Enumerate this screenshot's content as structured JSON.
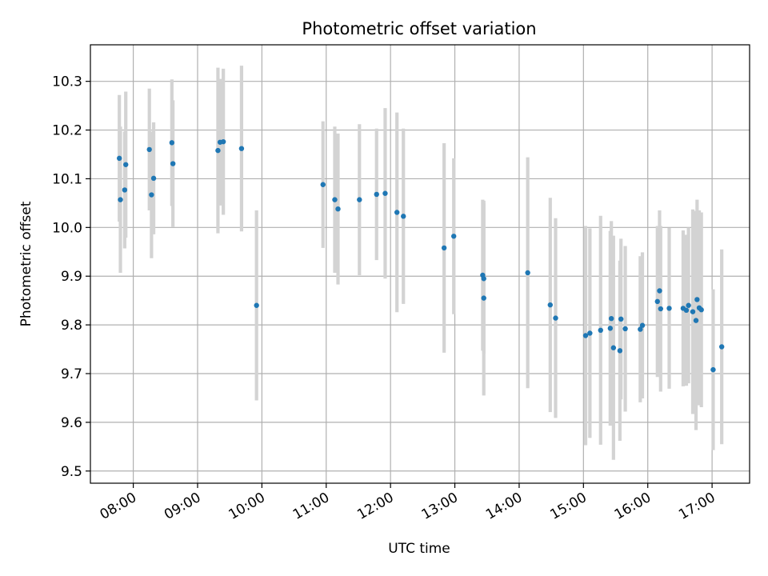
{
  "chart_data": {
    "type": "scatter",
    "title": "Photometric offset variation",
    "xlabel": "UTC time",
    "ylabel": "Photometric offset",
    "grid": true,
    "xlim": [
      "07:20",
      "17:35"
    ],
    "ylim": [
      9.475,
      10.375
    ],
    "xticks": [
      "08:00",
      "09:00",
      "10:00",
      "11:00",
      "12:00",
      "13:00",
      "14:00",
      "15:00",
      "16:00",
      "17:00"
    ],
    "yticks": [
      9.5,
      9.6,
      9.7,
      9.8,
      9.9,
      10.0,
      10.1,
      10.2,
      10.3
    ],
    "colors": {
      "point": "#1f77b4",
      "errorbar": "#d3d3d3",
      "grid": "#b0b0b0"
    },
    "series": [
      {
        "x": [
          "07:47",
          "07:48",
          "07:52",
          "07:53",
          "08:15",
          "08:17",
          "08:19",
          "08:36",
          "08:37",
          "09:19",
          "09:21",
          "09:24",
          "09:41",
          "09:55",
          "10:57",
          "11:08",
          "11:11",
          "11:31",
          "11:47",
          "11:55",
          "12:06",
          "12:12",
          "12:50",
          "12:59",
          "13:26",
          "13:27",
          "13:27",
          "14:08",
          "14:29",
          "14:34",
          "15:02",
          "15:06",
          "15:16",
          "15:25",
          "15:26",
          "15:28",
          "15:34",
          "15:35",
          "15:39",
          "15:53",
          "15:55",
          "16:09",
          "16:11",
          "16:12",
          "16:20",
          "16:33",
          "16:36",
          "16:38",
          "16:42",
          "16:45",
          "16:46",
          "16:48",
          "16:50",
          "17:01",
          "17:09"
        ],
        "y": [
          10.142,
          10.057,
          10.077,
          10.129,
          10.16,
          10.067,
          10.101,
          10.174,
          10.131,
          10.158,
          10.175,
          10.176,
          10.162,
          9.84,
          10.088,
          10.057,
          10.038,
          10.057,
          10.068,
          10.07,
          10.031,
          10.023,
          9.958,
          9.982,
          9.902,
          9.895,
          9.855,
          9.907,
          9.841,
          9.814,
          9.778,
          9.783,
          9.789,
          9.793,
          9.813,
          9.753,
          9.747,
          9.812,
          9.792,
          9.791,
          9.799,
          9.848,
          9.87,
          9.833,
          9.834,
          9.834,
          9.83,
          9.84,
          9.827,
          9.809,
          9.852,
          9.835,
          9.831,
          9.708,
          9.755
        ],
        "yerr": [
          0.13,
          0.15,
          0.12,
          0.15,
          0.125,
          0.13,
          0.115,
          0.13,
          0.13,
          0.17,
          0.13,
          0.15,
          0.17,
          0.195,
          0.13,
          0.15,
          0.155,
          0.155,
          0.135,
          0.175,
          0.205,
          0.18,
          0.215,
          0.16,
          0.155,
          0.155,
          0.2,
          0.237,
          0.22,
          0.205,
          0.225,
          0.215,
          0.235,
          0.2,
          0.2,
          0.23,
          0.185,
          0.165,
          0.17,
          0.15,
          0.15,
          0.155,
          0.165,
          0.17,
          0.165,
          0.16,
          0.155,
          0.16,
          0.21,
          0.225,
          0.205,
          0.2,
          0.2,
          0.165,
          0.2
        ]
      }
    ]
  }
}
